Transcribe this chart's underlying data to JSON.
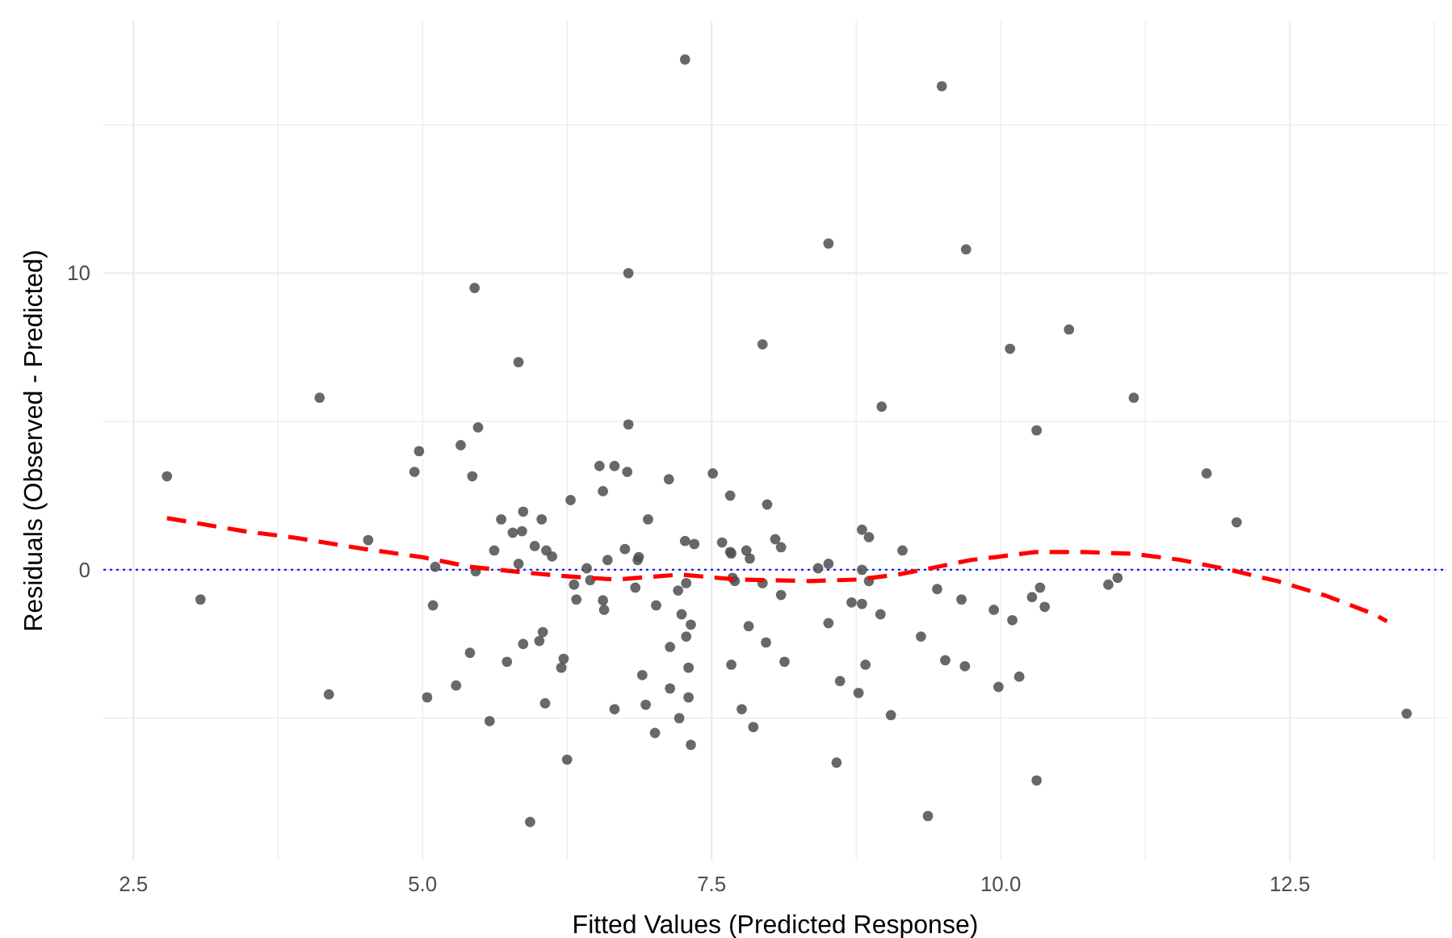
{
  "chart_data": {
    "type": "scatter",
    "xlabel": "Fitted Values (Predicted Response)",
    "ylabel": "Residuals (Observed - Predicted)",
    "xlim": [
      2.24,
      13.86
    ],
    "ylim": [
      -9.8,
      18.5
    ],
    "xticks": [
      2.5,
      {
        "value": 3.75,
        "label": null
      },
      {
        "value": 5,
        "label": "5.0"
      },
      {
        "value": 6.25,
        "label": null
      },
      7.5,
      {
        "value": 8.75,
        "label": null
      },
      {
        "value": 10,
        "label": "10.0"
      },
      {
        "value": 11.25,
        "label": null
      },
      12.5,
      {
        "value": 13.75,
        "label": null
      }
    ],
    "yticks": [
      {
        "value": -5,
        "label": null
      },
      0,
      {
        "value": 5,
        "label": null
      },
      10,
      {
        "value": 15,
        "label": null
      }
    ],
    "grid": true,
    "series": [
      {
        "type": "scatter",
        "color": "#4d4d4d",
        "marker": "circle",
        "x": [
          7.27,
          9.49,
          8.51,
          9.7,
          6.78,
          5.45,
          5.83,
          7.94,
          10.59,
          10.08,
          11.15,
          4.11,
          8.97,
          6.78,
          10.31,
          5.48,
          5.33,
          4.97,
          6.53,
          6.66,
          6.77,
          7.13,
          7.51,
          4.93,
          2.79,
          5.43,
          11.78,
          6.56,
          7.66,
          6.28,
          7.98,
          5.87,
          5.68,
          6.03,
          6.95,
          12.04,
          8.8,
          8.86,
          5.78,
          5.86,
          7.27,
          7.35,
          8.05,
          8.1,
          7.59,
          4.53,
          5.97,
          6.75,
          5.62,
          6.07,
          6.12,
          6.6,
          6.87,
          6.86,
          7.66,
          7.67,
          7.8,
          7.83,
          9.15,
          5.83,
          5.11,
          5.46,
          6.42,
          8.42,
          8.51,
          8.8,
          6.31,
          6.45,
          6.84,
          7.28,
          7.21,
          7.68,
          7.7,
          7.94,
          8.1,
          8.86,
          9.45,
          9.66,
          6.33,
          6.56,
          6.57,
          7.02,
          8.71,
          8.8,
          9.94,
          8.96,
          7.24,
          7.32,
          8.51,
          7.28,
          7.82,
          7.97,
          7.14,
          9.31,
          3.08,
          5.09,
          6.04,
          6.01,
          5.87,
          5.41,
          5.73,
          6.22,
          6.2,
          8.13,
          7.67,
          8.83,
          9.52,
          9.69,
          7.3,
          6.9,
          8.61,
          7.14,
          9.98,
          7.3,
          8.77,
          5.29,
          4.19,
          5.04,
          6.06,
          6.93,
          6.66,
          7.76,
          7.22,
          9.05,
          5.58,
          7.86,
          7.01,
          7.32,
          6.25,
          8.58,
          9.37,
          5.93,
          10.93,
          11.01,
          10.27,
          10.34,
          10.38,
          10.1,
          10.16,
          10.31,
          13.51
        ],
        "values": [
          17.2,
          16.3,
          11.0,
          10.8,
          10.0,
          9.5,
          7.0,
          7.6,
          8.1,
          7.45,
          5.8,
          5.8,
          5.5,
          4.9,
          4.7,
          4.8,
          4.2,
          4.0,
          3.5,
          3.5,
          3.3,
          3.05,
          3.25,
          3.3,
          3.15,
          3.15,
          3.25,
          2.65,
          2.5,
          2.35,
          2.2,
          1.96,
          1.7,
          1.7,
          1.7,
          1.6,
          1.35,
          1.1,
          1.25,
          1.3,
          0.97,
          0.87,
          1.03,
          0.76,
          0.92,
          1.0,
          0.8,
          0.7,
          0.65,
          0.65,
          0.45,
          0.33,
          0.43,
          0.33,
          0.6,
          0.55,
          0.65,
          0.38,
          0.65,
          0.2,
          0.1,
          -0.05,
          0.05,
          0.05,
          0.2,
          0.0,
          -0.5,
          -0.35,
          -0.6,
          -0.45,
          -0.7,
          -0.27,
          -0.38,
          -0.45,
          -0.85,
          -0.38,
          -0.65,
          -1.0,
          -1.0,
          -1.03,
          -1.35,
          -1.2,
          -1.1,
          -1.15,
          -1.35,
          -1.5,
          -1.5,
          -1.85,
          -1.8,
          -2.25,
          -1.9,
          -2.45,
          -2.6,
          -2.25,
          -1.0,
          -1.2,
          -2.1,
          -2.4,
          -2.5,
          -2.8,
          -3.1,
          -3.0,
          -3.3,
          -3.1,
          -3.2,
          -3.2,
          -3.05,
          -3.25,
          -3.3,
          -3.55,
          -3.75,
          -4.0,
          -3.95,
          -4.3,
          -4.15,
          -3.9,
          -4.2,
          -4.3,
          -4.5,
          -4.55,
          -4.7,
          -4.7,
          -5.0,
          -4.9,
          -5.1,
          -5.3,
          -5.5,
          -5.9,
          -6.4,
          -6.5,
          -8.3,
          -8.5,
          -0.5,
          -0.27,
          -0.92,
          -0.6,
          -1.25,
          -1.7,
          -3.6,
          -7.1,
          -4.85
        ]
      },
      {
        "type": "line",
        "color": "#ff0000",
        "line_style": "dashed",
        "marker": "none",
        "x": [
          2.79,
          3.46,
          3.88,
          4.5,
          4.99,
          5.41,
          5.9,
          6.18,
          6.67,
          7.23,
          7.72,
          8.35,
          8.76,
          9.11,
          9.39,
          9.74,
          9.96,
          10.3,
          10.72,
          11.14,
          11.56,
          11.98,
          12.39,
          12.81,
          13.23,
          13.34
        ],
        "values": [
          1.74,
          1.3,
          1.09,
          0.7,
          0.43,
          0.1,
          -0.1,
          -0.2,
          -0.33,
          -0.16,
          -0.33,
          -0.38,
          -0.33,
          -0.16,
          0.05,
          0.33,
          0.43,
          0.6,
          0.6,
          0.54,
          0.33,
          0.0,
          -0.38,
          -0.87,
          -1.5,
          -1.74
        ]
      }
    ],
    "ref_lines": [
      {
        "axis": "y",
        "value": 0,
        "color": "#0000ff",
        "line_style": "dotted"
      }
    ]
  }
}
